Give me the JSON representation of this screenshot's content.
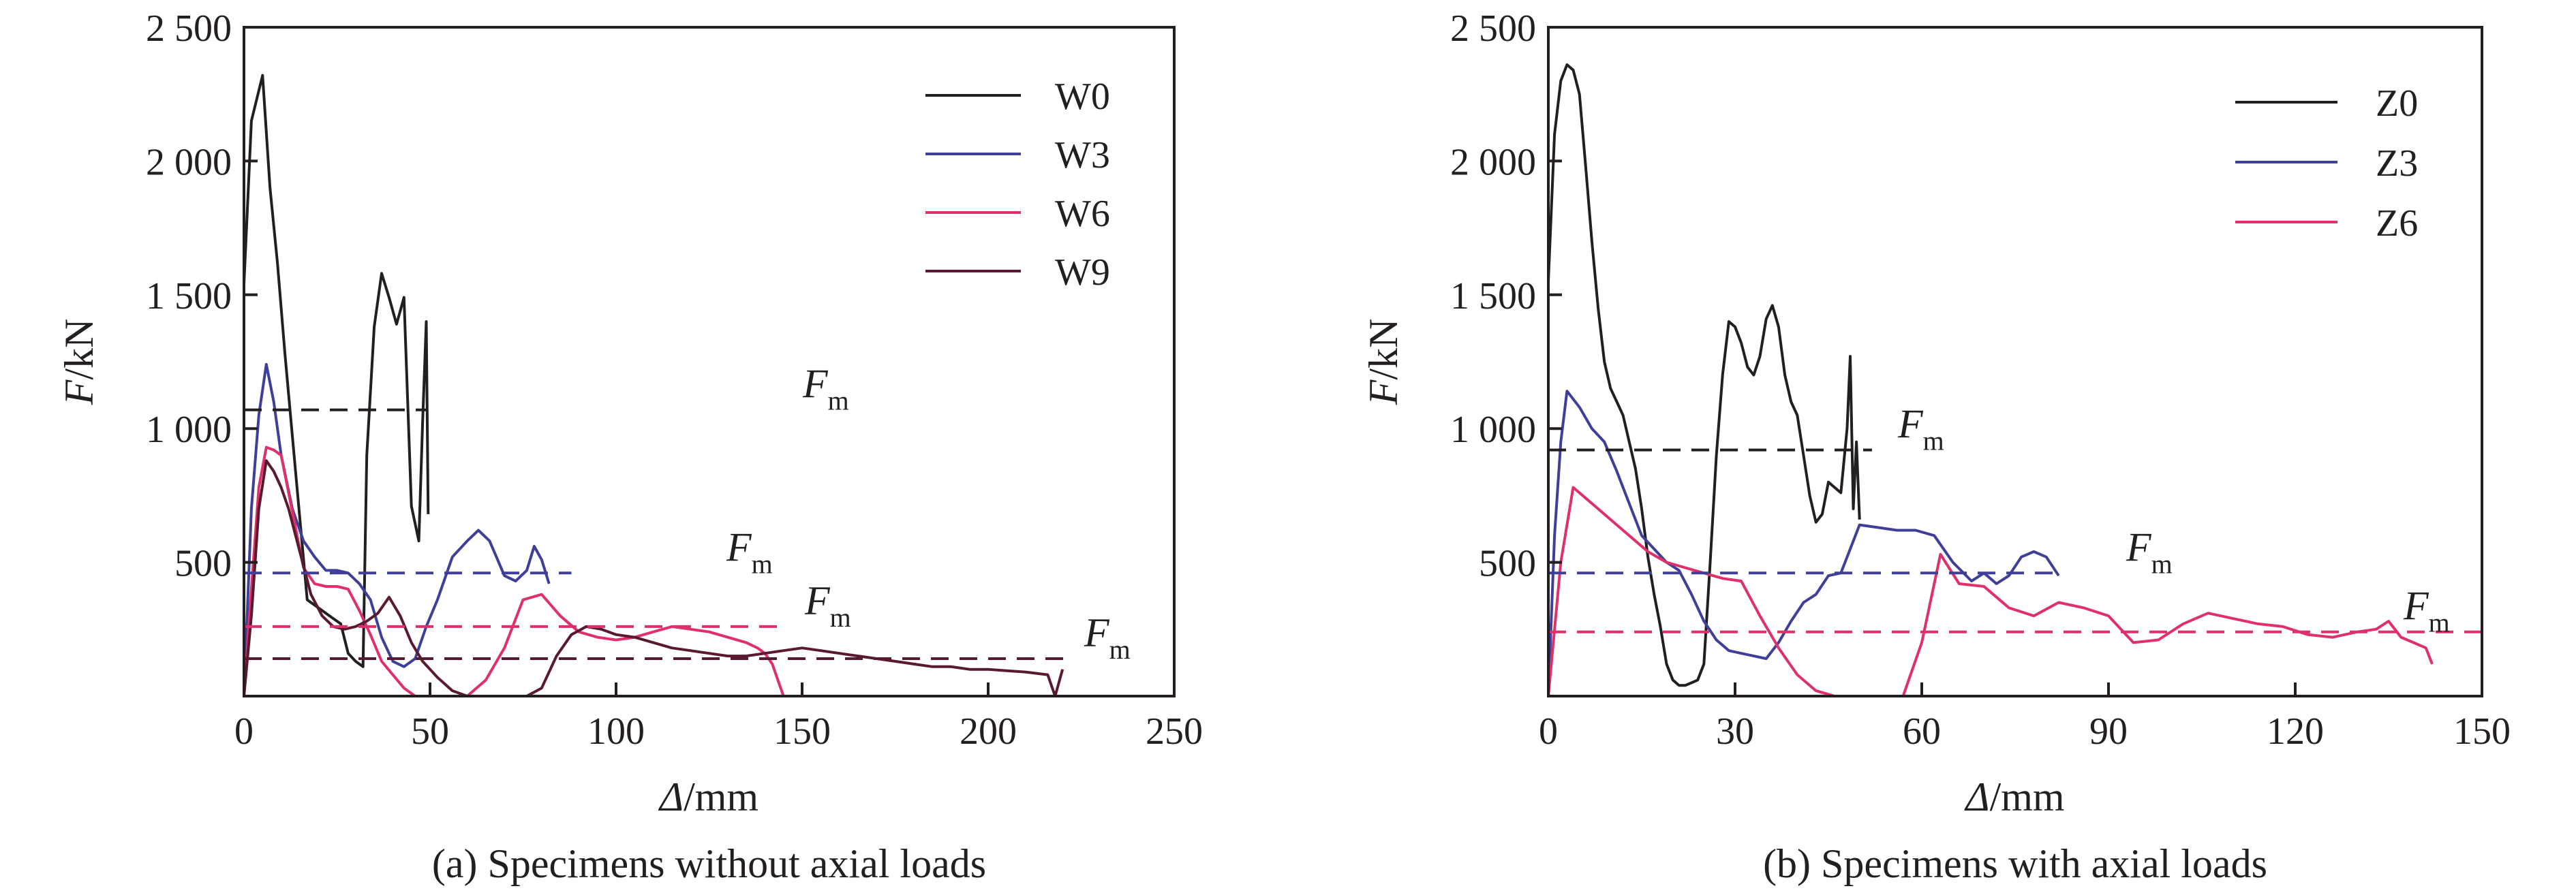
{
  "chart_data": [
    {
      "type": "line",
      "caption": "(a) Specimens without axial loads",
      "xlabel": {
        "italic": "Δ",
        "rest": "/mm"
      },
      "ylabel": {
        "italic": "F",
        "rest": "/kN"
      },
      "xlim": [
        0,
        250
      ],
      "ylim": [
        0,
        2500
      ],
      "xticks": [
        0,
        50,
        100,
        150,
        200,
        250
      ],
      "xtick_labels": [
        "0",
        "50",
        "100",
        "150",
        "200",
        "250"
      ],
      "yticks": [
        500,
        1000,
        1500,
        2000,
        2500
      ],
      "ytick_labels": [
        "500",
        "1 000",
        "1 500",
        "2 000",
        "2 500"
      ],
      "grid": false,
      "legend_position": "top-right",
      "series": [
        {
          "name": "W0",
          "color": "#231f20",
          "x": [
            0,
            2,
            5,
            7,
            9,
            11,
            14,
            17,
            20,
            23,
            26,
            28,
            30,
            32,
            33,
            35,
            37,
            39,
            41,
            43,
            45,
            47,
            48,
            49,
            49.5
          ],
          "y": [
            1540,
            2150,
            2320,
            1900,
            1620,
            1280,
            820,
            360,
            330,
            300,
            270,
            160,
            130,
            110,
            900,
            1380,
            1580,
            1490,
            1390,
            1490,
            710,
            580,
            1020,
            1400,
            680
          ]
        },
        {
          "name": "W3",
          "color": "#3f3f9a",
          "x": [
            0,
            2,
            4,
            6,
            8,
            10,
            13,
            16,
            19,
            22,
            25,
            28,
            31,
            34,
            37,
            40,
            43,
            46,
            49,
            52,
            56,
            60,
            63,
            66,
            70,
            73,
            76,
            78,
            80,
            82
          ],
          "y": [
            0,
            700,
            1050,
            1240,
            1100,
            900,
            700,
            580,
            520,
            470,
            470,
            460,
            420,
            360,
            220,
            130,
            110,
            140,
            260,
            360,
            520,
            580,
            620,
            580,
            450,
            430,
            470,
            560,
            510,
            420
          ]
        },
        {
          "name": "W6",
          "color": "#e0306a",
          "x": [
            0,
            2,
            4,
            6,
            8,
            10,
            12,
            14,
            16,
            19,
            22,
            25,
            28,
            31,
            34,
            37,
            40,
            43,
            46,
            50,
            55,
            60,
            65,
            70,
            75,
            80,
            85,
            90,
            95,
            100,
            105,
            110,
            115,
            120,
            125,
            130,
            135,
            138,
            140,
            142,
            144,
            145
          ],
          "y": [
            0,
            400,
            780,
            930,
            920,
            900,
            760,
            620,
            480,
            420,
            410,
            410,
            400,
            320,
            230,
            130,
            80,
            30,
            0,
            0,
            0,
            0,
            60,
            180,
            360,
            380,
            300,
            240,
            220,
            210,
            220,
            240,
            260,
            250,
            240,
            220,
            200,
            180,
            160,
            120,
            40,
            0
          ]
        },
        {
          "name": "W9",
          "color": "#5a1a2e",
          "x": [
            0,
            2,
            4,
            6,
            8,
            10,
            12,
            15,
            18,
            21,
            24,
            27,
            30,
            33,
            36,
            39,
            42,
            45,
            48,
            52,
            56,
            60,
            64,
            68,
            72,
            76,
            80,
            84,
            88,
            92,
            96,
            100,
            105,
            110,
            115,
            120,
            125,
            130,
            135,
            140,
            145,
            150,
            155,
            160,
            165,
            170,
            175,
            180,
            185,
            190,
            195,
            200,
            205,
            210,
            213,
            216,
            218,
            220
          ],
          "y": [
            0,
            300,
            700,
            880,
            840,
            780,
            700,
            540,
            380,
            300,
            260,
            250,
            260,
            280,
            310,
            370,
            300,
            200,
            130,
            70,
            20,
            0,
            0,
            0,
            0,
            0,
            30,
            150,
            230,
            260,
            250,
            230,
            220,
            200,
            180,
            170,
            160,
            150,
            150,
            160,
            170,
            180,
            170,
            160,
            150,
            140,
            130,
            120,
            110,
            110,
            100,
            100,
            95,
            90,
            85,
            80,
            0,
            100
          ]
        }
      ],
      "annotations": [
        {
          "type": "hline",
          "y": 1070,
          "x_start": 0,
          "x_end": 49,
          "color": "#231f20",
          "dashed": true,
          "label_main": "F",
          "label_sub": "m"
        },
        {
          "type": "hline",
          "y": 460,
          "x_start": 0,
          "x_end": 88,
          "color": "#3f3f9a",
          "dashed": true,
          "label_main": "F",
          "label_sub": "m"
        },
        {
          "type": "hline",
          "y": 260,
          "x_start": 0,
          "x_end": 145,
          "color": "#e0306a",
          "dashed": true,
          "label_main": "F",
          "label_sub": "m"
        },
        {
          "type": "hline",
          "y": 140,
          "x_start": 0,
          "x_end": 222,
          "color": "#5a1a2e",
          "dashed": true,
          "label_main": "F",
          "label_sub": "m"
        }
      ]
    },
    {
      "type": "line",
      "caption": "(b) Specimens with axial loads",
      "xlabel": {
        "italic": "Δ",
        "rest": "/mm"
      },
      "ylabel": {
        "italic": "F",
        "rest": "/kN"
      },
      "xlim": [
        0,
        150
      ],
      "ylim": [
        0,
        2500
      ],
      "xticks": [
        0,
        30,
        60,
        90,
        120,
        150
      ],
      "xtick_labels": [
        "0",
        "30",
        "60",
        "90",
        "120",
        "150"
      ],
      "yticks": [
        500,
        1000,
        1500,
        2000,
        2500
      ],
      "ytick_labels": [
        "500",
        "1 000",
        "1 500",
        "2 000",
        "2 500"
      ],
      "grid": false,
      "legend_position": "top-right",
      "series": [
        {
          "name": "Z0",
          "color": "#231f20",
          "x": [
            0,
            1,
            2,
            3,
            4,
            5,
            6,
            7,
            8,
            9,
            10,
            11,
            12,
            13,
            14,
            15,
            16,
            17,
            18,
            19,
            20,
            21,
            22,
            23,
            24,
            25,
            26,
            27,
            28,
            29,
            30,
            31,
            32,
            33,
            34,
            35,
            36,
            37,
            38,
            39,
            40,
            41,
            42,
            43,
            44,
            45,
            46,
            47,
            48,
            48.5,
            49,
            49.5,
            50
          ],
          "y": [
            1550,
            2100,
            2300,
            2360,
            2340,
            2250,
            1980,
            1700,
            1450,
            1250,
            1150,
            1100,
            1050,
            950,
            850,
            700,
            520,
            380,
            260,
            120,
            60,
            40,
            40,
            50,
            60,
            120,
            500,
            900,
            1200,
            1400,
            1380,
            1320,
            1230,
            1200,
            1270,
            1410,
            1460,
            1380,
            1200,
            1100,
            1050,
            900,
            750,
            650,
            680,
            800,
            780,
            760,
            1000,
            1270,
            700,
            950,
            660
          ]
        },
        {
          "name": "Z3",
          "color": "#3f3f9a",
          "x": [
            0,
            1,
            2,
            3,
            5,
            7,
            9,
            11,
            13,
            15,
            17,
            19,
            21,
            23,
            25,
            27,
            29,
            31,
            33,
            35,
            37,
            39,
            41,
            43,
            45,
            47,
            50,
            53,
            56,
            59,
            62,
            65,
            68,
            70,
            72,
            74,
            76,
            78,
            80,
            82
          ],
          "y": [
            0,
            600,
            950,
            1140,
            1080,
            1000,
            950,
            840,
            720,
            600,
            550,
            500,
            470,
            380,
            280,
            210,
            170,
            160,
            150,
            140,
            200,
            280,
            350,
            380,
            450,
            460,
            640,
            630,
            620,
            620,
            600,
            500,
            430,
            460,
            420,
            450,
            520,
            540,
            520,
            450
          ]
        },
        {
          "name": "Z6",
          "color": "#e0306a",
          "x": [
            0,
            2,
            4,
            6,
            8,
            10,
            12,
            14,
            16,
            19,
            22,
            25,
            28,
            31,
            34,
            37,
            40,
            43,
            46,
            50,
            54,
            57,
            60,
            63,
            66,
            70,
            74,
            78,
            82,
            86,
            90,
            94,
            98,
            102,
            106,
            110,
            114,
            118,
            122,
            126,
            130,
            133,
            135,
            137,
            139,
            141,
            142
          ],
          "y": [
            0,
            500,
            780,
            740,
            700,
            660,
            620,
            580,
            540,
            500,
            480,
            460,
            440,
            430,
            300,
            180,
            80,
            20,
            0,
            0,
            0,
            0,
            200,
            530,
            420,
            410,
            330,
            300,
            350,
            330,
            300,
            200,
            210,
            270,
            310,
            290,
            270,
            260,
            230,
            220,
            240,
            250,
            280,
            220,
            200,
            180,
            120
          ]
        }
      ],
      "annotations": [
        {
          "type": "hline",
          "y": 920,
          "x_start": 0,
          "x_end": 52,
          "color": "#231f20",
          "dashed": true,
          "label_main": "F",
          "label_sub": "m"
        },
        {
          "type": "hline",
          "y": 460,
          "x_start": 0,
          "x_end": 82,
          "color": "#3f3f9a",
          "dashed": true,
          "label_main": "F",
          "label_sub": "m"
        },
        {
          "type": "hline",
          "y": 240,
          "x_start": 0,
          "x_end": 150,
          "color": "#e0306a",
          "dashed": true,
          "label_main": "F",
          "label_sub": "m"
        }
      ]
    }
  ]
}
